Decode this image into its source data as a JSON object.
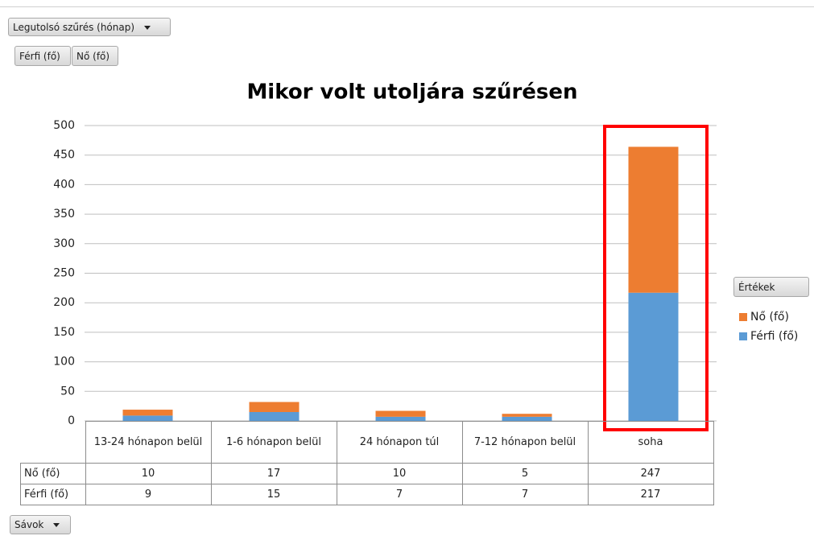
{
  "chart_data": {
    "type": "bar",
    "stacked": true,
    "title": "Mikor volt utoljára szűrésen",
    "filter_button": "Legutolsó szűrés (hónap)",
    "axis_field_button": "Sávok",
    "legend_title": "Értékek",
    "legend": "right",
    "grid": true,
    "categories": [
      "13-24 hónapon belül",
      "1-6 hónapon belül",
      "24 hónapon túl",
      "7-12 hónapon belül",
      "soha"
    ],
    "series": [
      {
        "name": "Férfi (fő)",
        "color": "#5b9bd5",
        "values": [
          9,
          15,
          7,
          7,
          217
        ]
      },
      {
        "name": "Nő (fő)",
        "color": "#ed7d31",
        "values": [
          10,
          17,
          10,
          5,
          247
        ]
      }
    ],
    "ylim": [
      0,
      500
    ],
    "yticks": [
      0,
      50,
      100,
      150,
      200,
      250,
      300,
      350,
      400,
      450,
      500
    ]
  }
}
